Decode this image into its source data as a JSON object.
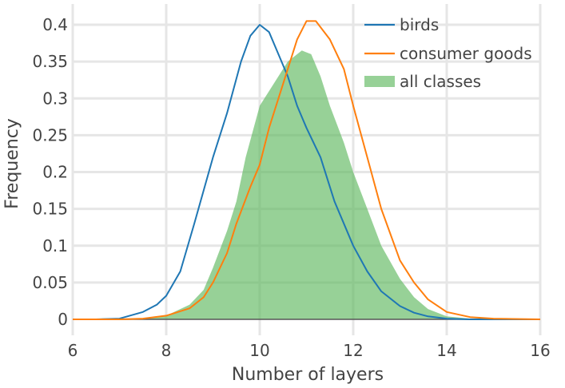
{
  "chart_data": {
    "type": "line",
    "title": "",
    "xlabel": "Number of layers",
    "ylabel": "Frequency",
    "xlim": [
      6,
      16
    ],
    "ylim": [
      0,
      0.42
    ],
    "x_ticks": [
      6,
      8,
      10,
      12,
      14,
      16
    ],
    "x_tick_labels": [
      "6",
      "8",
      "10",
      "12",
      "14",
      "16"
    ],
    "y_ticks": [
      0,
      0.05,
      0.1,
      0.15,
      0.2,
      0.25,
      0.3,
      0.35,
      0.4
    ],
    "y_tick_labels": [
      "0",
      "0.05",
      "0.1",
      "0.15",
      "0.2",
      "0.25",
      "0.3",
      "0.35",
      "0.4"
    ],
    "grid": true,
    "legend_position": "top-right",
    "series": [
      {
        "name": "birds",
        "kind": "line",
        "color": "#1f77b4",
        "points": [
          [
            6,
            0
          ],
          [
            6.5,
            0
          ],
          [
            7,
            0.001
          ],
          [
            7.5,
            0.01
          ],
          [
            7.8,
            0.02
          ],
          [
            8,
            0.032
          ],
          [
            8.3,
            0.065
          ],
          [
            8.6,
            0.13
          ],
          [
            9,
            0.22
          ],
          [
            9.3,
            0.28
          ],
          [
            9.6,
            0.35
          ],
          [
            9.8,
            0.385
          ],
          [
            10,
            0.4
          ],
          [
            10.2,
            0.39
          ],
          [
            10.4,
            0.36
          ],
          [
            10.6,
            0.33
          ],
          [
            10.8,
            0.29
          ],
          [
            11,
            0.26
          ],
          [
            11.3,
            0.22
          ],
          [
            11.6,
            0.16
          ],
          [
            12,
            0.1
          ],
          [
            12.3,
            0.065
          ],
          [
            12.6,
            0.038
          ],
          [
            13,
            0.018
          ],
          [
            13.3,
            0.009
          ],
          [
            13.6,
            0.004
          ],
          [
            14,
            0.001
          ],
          [
            14.5,
            0
          ],
          [
            16,
            0
          ]
        ]
      },
      {
        "name": "consumer goods",
        "kind": "line",
        "color": "#ff7f0e",
        "points": [
          [
            6,
            0
          ],
          [
            7,
            0
          ],
          [
            7.5,
            0.001
          ],
          [
            8,
            0.005
          ],
          [
            8.5,
            0.015
          ],
          [
            8.8,
            0.03
          ],
          [
            9,
            0.05
          ],
          [
            9.3,
            0.09
          ],
          [
            9.5,
            0.13
          ],
          [
            9.8,
            0.18
          ],
          [
            10,
            0.21
          ],
          [
            10.2,
            0.26
          ],
          [
            10.5,
            0.32
          ],
          [
            10.8,
            0.38
          ],
          [
            11,
            0.405
          ],
          [
            11.2,
            0.405
          ],
          [
            11.5,
            0.38
          ],
          [
            11.8,
            0.34
          ],
          [
            12,
            0.29
          ],
          [
            12.3,
            0.22
          ],
          [
            12.6,
            0.15
          ],
          [
            13,
            0.08
          ],
          [
            13.3,
            0.05
          ],
          [
            13.6,
            0.027
          ],
          [
            14,
            0.01
          ],
          [
            14.5,
            0.003
          ],
          [
            15,
            0.001
          ],
          [
            16,
            0
          ]
        ]
      },
      {
        "name": "all classes",
        "kind": "area",
        "color": "#5fb85f",
        "opacity": 0.65,
        "points": [
          [
            6,
            0
          ],
          [
            7,
            0
          ],
          [
            7.5,
            0.001
          ],
          [
            8,
            0.005
          ],
          [
            8.5,
            0.02
          ],
          [
            8.8,
            0.04
          ],
          [
            9,
            0.07
          ],
          [
            9.3,
            0.12
          ],
          [
            9.5,
            0.16
          ],
          [
            9.7,
            0.22
          ],
          [
            10,
            0.29
          ],
          [
            10.3,
            0.32
          ],
          [
            10.6,
            0.35
          ],
          [
            10.9,
            0.365
          ],
          [
            11.1,
            0.36
          ],
          [
            11.3,
            0.33
          ],
          [
            11.5,
            0.29
          ],
          [
            11.8,
            0.24
          ],
          [
            12,
            0.2
          ],
          [
            12.3,
            0.15
          ],
          [
            12.6,
            0.1
          ],
          [
            13,
            0.055
          ],
          [
            13.3,
            0.03
          ],
          [
            13.6,
            0.014
          ],
          [
            14,
            0.004
          ],
          [
            14.5,
            0.001
          ],
          [
            15,
            0
          ],
          [
            16,
            0
          ]
        ]
      }
    ]
  }
}
